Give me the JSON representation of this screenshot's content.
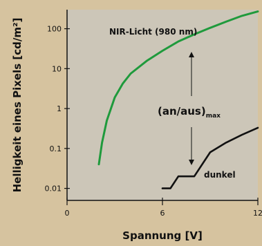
{
  "chart_data": {
    "type": "line",
    "xlabel": "Spannung [V]",
    "ylabel": "Helligkeit eines Pixels [cd/m²]",
    "xlim": [
      0,
      12
    ],
    "ylim": [
      0.005,
      300
    ],
    "y_scale": "log",
    "x_ticks": [
      0,
      6,
      12
    ],
    "x_tick_labels": [
      "0",
      "6",
      "12"
    ],
    "y_ticks": [
      0.01,
      0.1,
      1,
      10,
      100
    ],
    "y_tick_labels": [
      "0.01",
      "0.1",
      "1",
      "10",
      "100"
    ],
    "grid": false,
    "series": [
      {
        "name": "NIR-Licht (980 nm)",
        "color": "#1f9a3c",
        "x": [
          2.0,
          2.2,
          2.5,
          3.0,
          3.5,
          4.0,
          5.0,
          6.0,
          7.0,
          8.0,
          9.0,
          10.0,
          11.0,
          12.0
        ],
        "y": [
          0.04,
          0.14,
          0.5,
          1.9,
          4.2,
          7.5,
          15.5,
          28,
          48,
          72,
          105,
          150,
          210,
          270
        ]
      },
      {
        "name": "dunkel",
        "color": "#111111",
        "x": [
          6.0,
          6.5,
          7.0,
          8.0,
          9.0,
          10.0,
          11.0,
          12.0
        ],
        "y": [
          0.01,
          0.01,
          0.02,
          0.02,
          0.08,
          0.14,
          0.22,
          0.33
        ]
      }
    ],
    "annotations": {
      "ratio_main": "(an/aus)",
      "ratio_sub": "max"
    }
  }
}
